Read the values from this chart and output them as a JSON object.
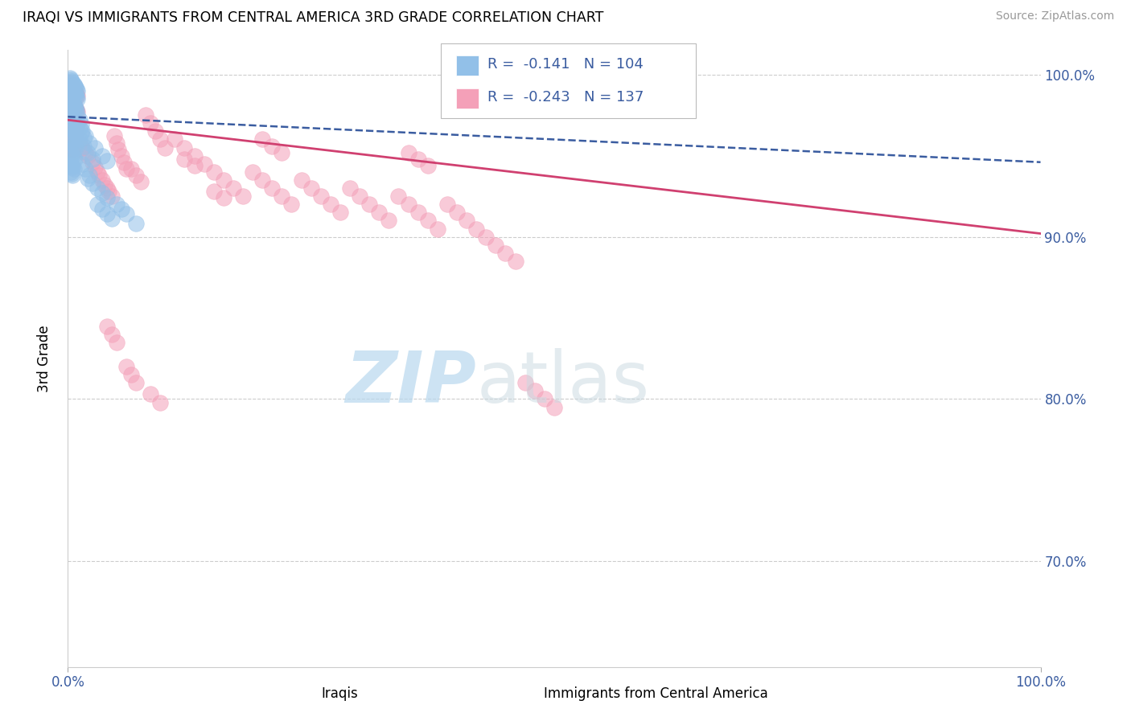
{
  "title": "IRAQI VS IMMIGRANTS FROM CENTRAL AMERICA 3RD GRADE CORRELATION CHART",
  "source": "Source: ZipAtlas.com",
  "ylabel": "3rd Grade",
  "legend_r_blue": "-0.141",
  "legend_n_blue": "104",
  "legend_r_pink": "-0.243",
  "legend_n_pink": "137",
  "blue_color": "#92C0E8",
  "pink_color": "#F4A0B8",
  "blue_line_color": "#3A5CA0",
  "pink_line_color": "#D04070",
  "blue_trend_x0": 0.0,
  "blue_trend_y0": 0.974,
  "blue_trend_x1": 1.0,
  "blue_trend_y1": 0.946,
  "pink_trend_x0": 0.0,
  "pink_trend_y0": 0.972,
  "pink_trend_x1": 1.0,
  "pink_trend_y1": 0.902,
  "xlim": [
    0.0,
    1.0
  ],
  "ylim": [
    0.635,
    1.015
  ],
  "yticks": [
    0.7,
    0.8,
    0.9,
    1.0
  ],
  "ytick_labels": [
    "70.0%",
    "80.0%",
    "90.0%",
    "100.0%"
  ],
  "blue_scatter_x": [
    0.002,
    0.003,
    0.004,
    0.005,
    0.006,
    0.007,
    0.008,
    0.009,
    0.01,
    0.002,
    0.003,
    0.004,
    0.005,
    0.006,
    0.007,
    0.008,
    0.009,
    0.01,
    0.002,
    0.003,
    0.004,
    0.005,
    0.006,
    0.007,
    0.008,
    0.009,
    0.002,
    0.003,
    0.004,
    0.005,
    0.006,
    0.007,
    0.008,
    0.009,
    0.003,
    0.004,
    0.005,
    0.006,
    0.007,
    0.008,
    0.003,
    0.004,
    0.005,
    0.006,
    0.007,
    0.008,
    0.003,
    0.004,
    0.005,
    0.006,
    0.007,
    0.003,
    0.004,
    0.005,
    0.006,
    0.003,
    0.004,
    0.005,
    0.015,
    0.018,
    0.022,
    0.028,
    0.035,
    0.04,
    0.015,
    0.018,
    0.022,
    0.012,
    0.016,
    0.02,
    0.025,
    0.01,
    0.012,
    0.014,
    0.016,
    0.01,
    0.012,
    0.014,
    0.02,
    0.025,
    0.03,
    0.035,
    0.04,
    0.05,
    0.055,
    0.06,
    0.07,
    0.03,
    0.035,
    0.04,
    0.045
  ],
  "blue_scatter_y": [
    0.998,
    0.997,
    0.996,
    0.995,
    0.994,
    0.993,
    0.992,
    0.991,
    0.99,
    0.993,
    0.992,
    0.991,
    0.99,
    0.989,
    0.988,
    0.987,
    0.986,
    0.985,
    0.985,
    0.984,
    0.983,
    0.982,
    0.981,
    0.98,
    0.979,
    0.978,
    0.976,
    0.975,
    0.974,
    0.973,
    0.972,
    0.971,
    0.97,
    0.969,
    0.968,
    0.967,
    0.966,
    0.965,
    0.964,
    0.963,
    0.96,
    0.959,
    0.958,
    0.957,
    0.956,
    0.955,
    0.952,
    0.951,
    0.95,
    0.949,
    0.948,
    0.945,
    0.944,
    0.943,
    0.942,
    0.94,
    0.939,
    0.938,
    0.965,
    0.962,
    0.958,
    0.955,
    0.95,
    0.947,
    0.945,
    0.942,
    0.938,
    0.96,
    0.956,
    0.952,
    0.948,
    0.97,
    0.967,
    0.964,
    0.961,
    0.975,
    0.972,
    0.969,
    0.936,
    0.933,
    0.93,
    0.927,
    0.924,
    0.92,
    0.917,
    0.914,
    0.908,
    0.92,
    0.917,
    0.914,
    0.911
  ],
  "pink_scatter_x": [
    0.002,
    0.003,
    0.004,
    0.005,
    0.006,
    0.007,
    0.008,
    0.009,
    0.01,
    0.002,
    0.003,
    0.004,
    0.005,
    0.006,
    0.007,
    0.008,
    0.009,
    0.01,
    0.003,
    0.004,
    0.005,
    0.006,
    0.007,
    0.008,
    0.009,
    0.003,
    0.004,
    0.005,
    0.006,
    0.007,
    0.008,
    0.003,
    0.004,
    0.005,
    0.006,
    0.012,
    0.015,
    0.018,
    0.02,
    0.025,
    0.028,
    0.03,
    0.032,
    0.035,
    0.038,
    0.04,
    0.042,
    0.045,
    0.048,
    0.05,
    0.052,
    0.055,
    0.058,
    0.06,
    0.065,
    0.07,
    0.075,
    0.08,
    0.085,
    0.09,
    0.095,
    0.1,
    0.11,
    0.12,
    0.13,
    0.14,
    0.15,
    0.16,
    0.17,
    0.18,
    0.19,
    0.2,
    0.21,
    0.22,
    0.23,
    0.24,
    0.25,
    0.26,
    0.27,
    0.28,
    0.29,
    0.3,
    0.31,
    0.32,
    0.33,
    0.34,
    0.35,
    0.36,
    0.37,
    0.38,
    0.39,
    0.4,
    0.41,
    0.42,
    0.43,
    0.44,
    0.45,
    0.46,
    0.35,
    0.36,
    0.37,
    0.2,
    0.21,
    0.22,
    0.15,
    0.16,
    0.12,
    0.13,
    0.04,
    0.045,
    0.05,
    0.01,
    0.012,
    0.015,
    0.06,
    0.065,
    0.07,
    0.085,
    0.095,
    0.47,
    0.48,
    0.49,
    0.5
  ],
  "pink_scatter_y": [
    0.995,
    0.994,
    0.993,
    0.992,
    0.991,
    0.99,
    0.989,
    0.988,
    0.987,
    0.985,
    0.984,
    0.983,
    0.982,
    0.981,
    0.98,
    0.979,
    0.978,
    0.977,
    0.974,
    0.973,
    0.972,
    0.971,
    0.97,
    0.969,
    0.968,
    0.965,
    0.964,
    0.963,
    0.962,
    0.961,
    0.96,
    0.956,
    0.955,
    0.954,
    0.953,
    0.958,
    0.955,
    0.952,
    0.95,
    0.946,
    0.943,
    0.94,
    0.938,
    0.935,
    0.932,
    0.93,
    0.928,
    0.925,
    0.962,
    0.958,
    0.954,
    0.95,
    0.946,
    0.942,
    0.942,
    0.938,
    0.934,
    0.975,
    0.97,
    0.965,
    0.96,
    0.955,
    0.96,
    0.955,
    0.95,
    0.945,
    0.94,
    0.935,
    0.93,
    0.925,
    0.94,
    0.935,
    0.93,
    0.925,
    0.92,
    0.935,
    0.93,
    0.925,
    0.92,
    0.915,
    0.93,
    0.925,
    0.92,
    0.915,
    0.91,
    0.925,
    0.92,
    0.915,
    0.91,
    0.905,
    0.92,
    0.915,
    0.91,
    0.905,
    0.9,
    0.895,
    0.89,
    0.885,
    0.952,
    0.948,
    0.944,
    0.96,
    0.956,
    0.952,
    0.928,
    0.924,
    0.948,
    0.944,
    0.845,
    0.84,
    0.835,
    0.965,
    0.96,
    0.955,
    0.82,
    0.815,
    0.81,
    0.803,
    0.798,
    0.81,
    0.805,
    0.8,
    0.795
  ]
}
